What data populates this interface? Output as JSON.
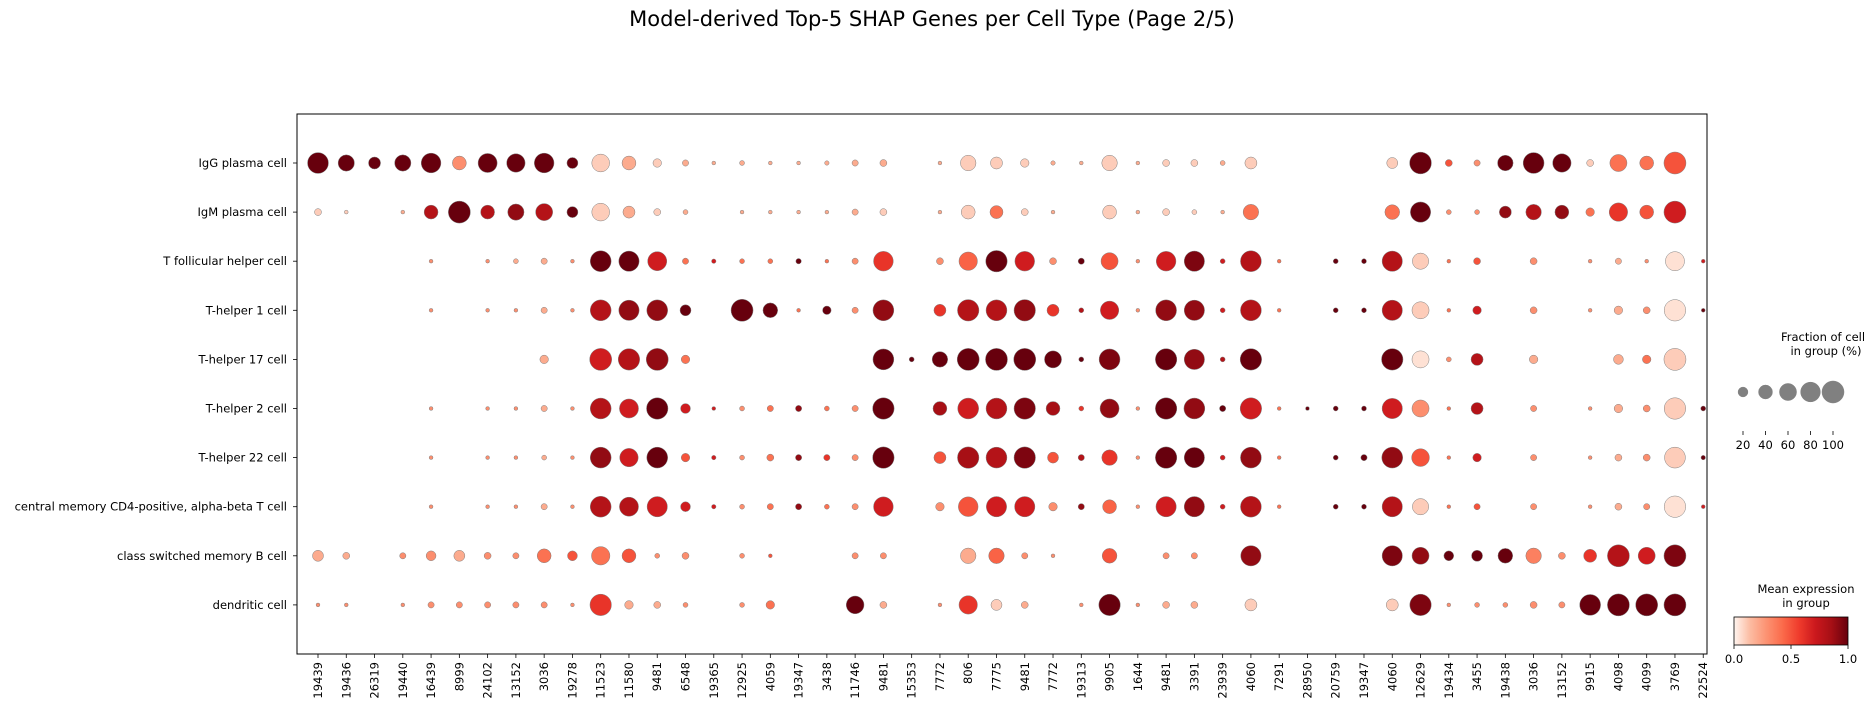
{
  "chart_data": {
    "type": "dotplot",
    "title": "Model-derived Top-5 SHAP Genes per Cell Type (Page 2/5)",
    "rows": [
      "IgG plasma cell",
      "IgM plasma cell",
      "T follicular helper cell",
      "T-helper 1 cell",
      "T-helper 17 cell",
      "T-helper 2 cell",
      "T-helper 22 cell",
      "central memory CD4-positive, alpha-beta T cell",
      "class switched memory B cell",
      "dendritic cell"
    ],
    "genes": [
      "19439",
      "19436",
      "26319",
      "19440",
      "16439",
      "8999",
      "24102",
      "13152",
      "3036",
      "19278",
      "11523",
      "11580",
      "9481",
      "6548",
      "19365",
      "12925",
      "4059",
      "19347",
      "3438",
      "11746",
      "9481",
      "15353",
      "7772",
      "806",
      "7775",
      "9481",
      "7772",
      "19313",
      "9905",
      "1644",
      "9481",
      "3391",
      "23939",
      "4060",
      "7291",
      "28950",
      "20759",
      "19347",
      "4060",
      "12629",
      "19434",
      "3455",
      "19438",
      "3036",
      "13152",
      "9915",
      "4098",
      "4099",
      "3769",
      "22524"
    ],
    "fraction": [
      [
        90,
        55,
        30,
        55,
        80,
        40,
        75,
        70,
        80,
        25,
        65,
        40,
        15,
        8,
        3,
        5,
        3,
        3,
        4,
        8,
        10,
        0,
        3,
        50,
        30,
        15,
        4,
        3,
        50,
        3,
        10,
        10,
        5,
        30,
        0,
        0,
        0,
        0,
        25,
        98,
        10,
        8,
        50,
        90,
        70,
        10,
        60,
        40,
        100,
        0
      ],
      [
        10,
        3,
        0,
        3,
        40,
        100,
        40,
        55,
        60,
        25,
        65,
        30,
        10,
        5,
        0,
        3,
        3,
        3,
        3,
        8,
        10,
        0,
        3,
        40,
        35,
        10,
        3,
        0,
        40,
        3,
        10,
        5,
        3,
        50,
        0,
        0,
        0,
        0,
        45,
        85,
        5,
        5,
        30,
        50,
        40,
        15,
        70,
        40,
        100,
        0
      ],
      [
        0,
        0,
        0,
        0,
        3,
        0,
        3,
        5,
        8,
        3,
        90,
        85,
        75,
        8,
        4,
        5,
        5,
        6,
        3,
        8,
        80,
        0,
        10,
        70,
        95,
        80,
        10,
        8,
        60,
        3,
        80,
        85,
        5,
        90,
        3,
        0,
        5,
        5,
        85,
        55,
        3,
        10,
        0,
        10,
        0,
        3,
        8,
        3,
        75,
        3
      ],
      [
        0,
        0,
        0,
        0,
        3,
        0,
        3,
        3,
        8,
        3,
        90,
        85,
        90,
        25,
        0,
        100,
        45,
        3,
        15,
        8,
        90,
        0,
        30,
        95,
        90,
        95,
        30,
        5,
        70,
        3,
        90,
        85,
        5,
        90,
        3,
        0,
        5,
        5,
        85,
        60,
        3,
        15,
        0,
        10,
        0,
        3,
        15,
        10,
        95,
        3
      ],
      [
        0,
        0,
        0,
        0,
        0,
        0,
        0,
        0,
        15,
        0,
        100,
        95,
        100,
        15,
        0,
        0,
        0,
        0,
        0,
        0,
        90,
        5,
        50,
        100,
        100,
        100,
        60,
        5,
        90,
        0,
        95,
        85,
        5,
        95,
        0,
        0,
        0,
        0,
        95,
        60,
        5,
        30,
        0,
        15,
        0,
        0,
        20,
        15,
        100,
        0
      ],
      [
        0,
        0,
        0,
        0,
        3,
        0,
        3,
        3,
        8,
        3,
        90,
        75,
        95,
        20,
        3,
        5,
        8,
        8,
        5,
        8,
        95,
        0,
        40,
        90,
        90,
        95,
        40,
        5,
        75,
        3,
        95,
        90,
        8,
        95,
        3,
        3,
        5,
        5,
        85,
        60,
        3,
        30,
        0,
        8,
        0,
        3,
        15,
        10,
        95,
        5
      ],
      [
        0,
        0,
        0,
        0,
        3,
        0,
        3,
        3,
        5,
        3,
        90,
        70,
        90,
        15,
        4,
        5,
        10,
        8,
        8,
        8,
        95,
        0,
        30,
        95,
        90,
        95,
        25,
        8,
        50,
        3,
        95,
        85,
        5,
        90,
        3,
        0,
        5,
        8,
        90,
        65,
        3,
        15,
        0,
        8,
        0,
        3,
        10,
        10,
        90,
        4
      ],
      [
        0,
        0,
        0,
        0,
        3,
        0,
        3,
        3,
        8,
        3,
        90,
        75,
        85,
        20,
        4,
        5,
        8,
        8,
        5,
        8,
        80,
        0,
        15,
        80,
        85,
        85,
        15,
        8,
        40,
        3,
        85,
        85,
        5,
        90,
        3,
        0,
        5,
        5,
        85,
        55,
        3,
        8,
        0,
        8,
        0,
        3,
        10,
        8,
        95,
        3
      ],
      [
        25,
        10,
        0,
        8,
        20,
        25,
        10,
        8,
        40,
        20,
        70,
        40,
        5,
        10,
        0,
        5,
        3,
        0,
        0,
        8,
        8,
        0,
        0,
        50,
        50,
        8,
        3,
        0,
        45,
        0,
        8,
        8,
        0,
        85,
        0,
        0,
        0,
        0,
        85,
        60,
        20,
        25,
        45,
        50,
        10,
        35,
        100,
        60,
        100,
        0
      ],
      [
        3,
        3,
        0,
        3,
        8,
        8,
        8,
        8,
        8,
        3,
        95,
        15,
        10,
        5,
        0,
        5,
        15,
        0,
        0,
        65,
        10,
        0,
        3,
        70,
        25,
        10,
        0,
        3,
        95,
        3,
        10,
        10,
        0,
        30,
        0,
        0,
        0,
        0,
        30,
        95,
        3,
        5,
        5,
        10,
        8,
        90,
        100,
        100,
        100,
        0
      ]
    ],
    "expression": [
      [
        1.0,
        1.0,
        1.0,
        1.0,
        1.0,
        0.3,
        1.0,
        1.0,
        1.0,
        1.0,
        0.1,
        0.2,
        0.1,
        0.2,
        0.2,
        0.2,
        0.2,
        0.2,
        0.2,
        0.2,
        0.2,
        0,
        0.2,
        0.1,
        0.1,
        0.1,
        0.2,
        0.2,
        0.1,
        0.2,
        0.1,
        0.1,
        0.2,
        0.1,
        0,
        0,
        0,
        0,
        0.1,
        1.0,
        0.5,
        0.3,
        1.0,
        1.0,
        1.0,
        0.1,
        0.4,
        0.4,
        0.5,
        0
      ],
      [
        0.1,
        0.1,
        0,
        0.2,
        0.8,
        1.0,
        0.8,
        0.9,
        0.8,
        1.0,
        0.1,
        0.2,
        0.1,
        0.2,
        0,
        0.2,
        0.2,
        0.2,
        0.2,
        0.2,
        0.1,
        0,
        0.2,
        0.1,
        0.4,
        0.1,
        0.2,
        0,
        0.1,
        0.2,
        0.1,
        0.1,
        0.2,
        0.4,
        0,
        0,
        0,
        0,
        0.4,
        1.0,
        0.3,
        0.3,
        0.9,
        0.8,
        0.9,
        0.4,
        0.6,
        0.5,
        0.7,
        0
      ],
      [
        0,
        0,
        0,
        0,
        0.3,
        0,
        0.3,
        0.2,
        0.2,
        0.3,
        1.0,
        1.0,
        0.7,
        0.4,
        0.7,
        0.4,
        0.4,
        1.0,
        0.4,
        0.3,
        0.6,
        0,
        0.3,
        0.45,
        1.0,
        0.7,
        0.3,
        1.0,
        0.5,
        0.3,
        0.7,
        0.95,
        0.7,
        0.8,
        0.4,
        0,
        1.0,
        1.0,
        0.8,
        0.1,
        0.4,
        0.5,
        0,
        0.3,
        0,
        0.3,
        0.2,
        0.3,
        0.05,
        0.7
      ],
      [
        0,
        0,
        0,
        0,
        0.3,
        0,
        0.3,
        0.3,
        0.2,
        0.3,
        0.8,
        0.9,
        0.9,
        1.0,
        0,
        1.0,
        1.0,
        0.4,
        1.0,
        0.3,
        0.9,
        0,
        0.6,
        0.8,
        0.8,
        0.9,
        0.6,
        0.8,
        0.7,
        0.3,
        0.9,
        0.9,
        0.7,
        0.8,
        0.4,
        0,
        1.0,
        1.0,
        0.8,
        0.1,
        0.4,
        0.7,
        0,
        0.3,
        0,
        0.3,
        0.2,
        0.3,
        0.05,
        1.0
      ],
      [
        0,
        0,
        0,
        0,
        0,
        0,
        0,
        0,
        0.2,
        0,
        0.7,
        0.8,
        0.9,
        0.4,
        0,
        0,
        0,
        0,
        0,
        0,
        1.0,
        1.0,
        1.0,
        1.0,
        1.0,
        1.0,
        1.0,
        1.0,
        0.95,
        0,
        1.0,
        0.9,
        0.8,
        1.0,
        0,
        0,
        0,
        0,
        1.0,
        0.05,
        0.3,
        0.8,
        0,
        0.2,
        0,
        0,
        0.2,
        0.4,
        0.1,
        0
      ],
      [
        0,
        0,
        0,
        0,
        0.3,
        0,
        0.3,
        0.3,
        0.2,
        0.3,
        0.8,
        0.7,
        1.0,
        0.7,
        0.7,
        0.3,
        0.4,
        0.9,
        0.4,
        0.3,
        1.0,
        0,
        0.85,
        0.7,
        0.8,
        0.95,
        0.85,
        0.6,
        0.9,
        0.3,
        1.0,
        0.9,
        1.0,
        0.7,
        0.4,
        1.0,
        1.0,
        1.0,
        0.7,
        0.3,
        0.4,
        0.8,
        0,
        0.3,
        0,
        0.3,
        0.2,
        0.3,
        0.1,
        1.0
      ],
      [
        0,
        0,
        0,
        0,
        0.3,
        0,
        0.3,
        0.3,
        0.2,
        0.3,
        0.9,
        0.7,
        1.0,
        0.5,
        0.7,
        0.3,
        0.4,
        0.9,
        0.6,
        0.3,
        1.0,
        0,
        0.5,
        0.85,
        0.8,
        0.95,
        0.5,
        0.8,
        0.6,
        0.3,
        1.0,
        1.0,
        0.7,
        0.9,
        0.4,
        0,
        1.0,
        1.0,
        0.9,
        0.5,
        0.4,
        0.7,
        0,
        0.3,
        0,
        0.3,
        0.2,
        0.3,
        0.1,
        1.0
      ],
      [
        0,
        0,
        0,
        0,
        0.3,
        0,
        0.3,
        0.3,
        0.2,
        0.3,
        0.8,
        0.8,
        0.7,
        0.7,
        0.7,
        0.3,
        0.4,
        0.9,
        0.4,
        0.3,
        0.7,
        0,
        0.3,
        0.5,
        0.7,
        0.7,
        0.3,
        0.9,
        0.45,
        0.3,
        0.7,
        0.9,
        0.7,
        0.8,
        0.4,
        0,
        1.0,
        1.0,
        0.8,
        0.1,
        0.4,
        0.5,
        0,
        0.3,
        0,
        0.3,
        0.2,
        0.3,
        0.05,
        0.7
      ],
      [
        0.2,
        0.2,
        0,
        0.3,
        0.3,
        0.2,
        0.3,
        0.3,
        0.4,
        0.5,
        0.4,
        0.5,
        0.3,
        0.3,
        0,
        0.3,
        0.5,
        0,
        0,
        0.3,
        0.3,
        0,
        0,
        0.2,
        0.45,
        0.3,
        0.3,
        0,
        0.5,
        0,
        0.3,
        0.3,
        0,
        0.9,
        0,
        0,
        0,
        0,
        0.95,
        0.9,
        1.0,
        1.0,
        1.0,
        0.35,
        0.3,
        0.6,
        0.8,
        0.7,
        0.95,
        0
      ],
      [
        0.3,
        0.3,
        0,
        0.3,
        0.3,
        0.3,
        0.3,
        0.3,
        0.3,
        0.3,
        0.6,
        0.2,
        0.2,
        0.3,
        0,
        0.3,
        0.4,
        0,
        0,
        1.0,
        0.2,
        0,
        0.3,
        0.6,
        0.1,
        0.2,
        0,
        0.3,
        1.0,
        0.3,
        0.2,
        0.2,
        0,
        0.1,
        0,
        0,
        0,
        0,
        0.1,
        0.95,
        0.3,
        0.3,
        0.3,
        0.3,
        0.3,
        1.0,
        1.0,
        1.0,
        1.0,
        0
      ]
    ],
    "size_legend": {
      "title": "Fraction of cells\nin group (%)",
      "ticks": [
        "20",
        "40",
        "60",
        "80",
        "100"
      ]
    },
    "color_legend": {
      "title": "Mean expression\nin group",
      "ticks": [
        "0.0",
        "0.5",
        "1.0"
      ],
      "colormap": [
        "#fff5f0",
        "#fcbba1",
        "#fc9272",
        "#fb6a4a",
        "#ef3b2c",
        "#cb181d",
        "#a50f15",
        "#67000d"
      ]
    }
  }
}
